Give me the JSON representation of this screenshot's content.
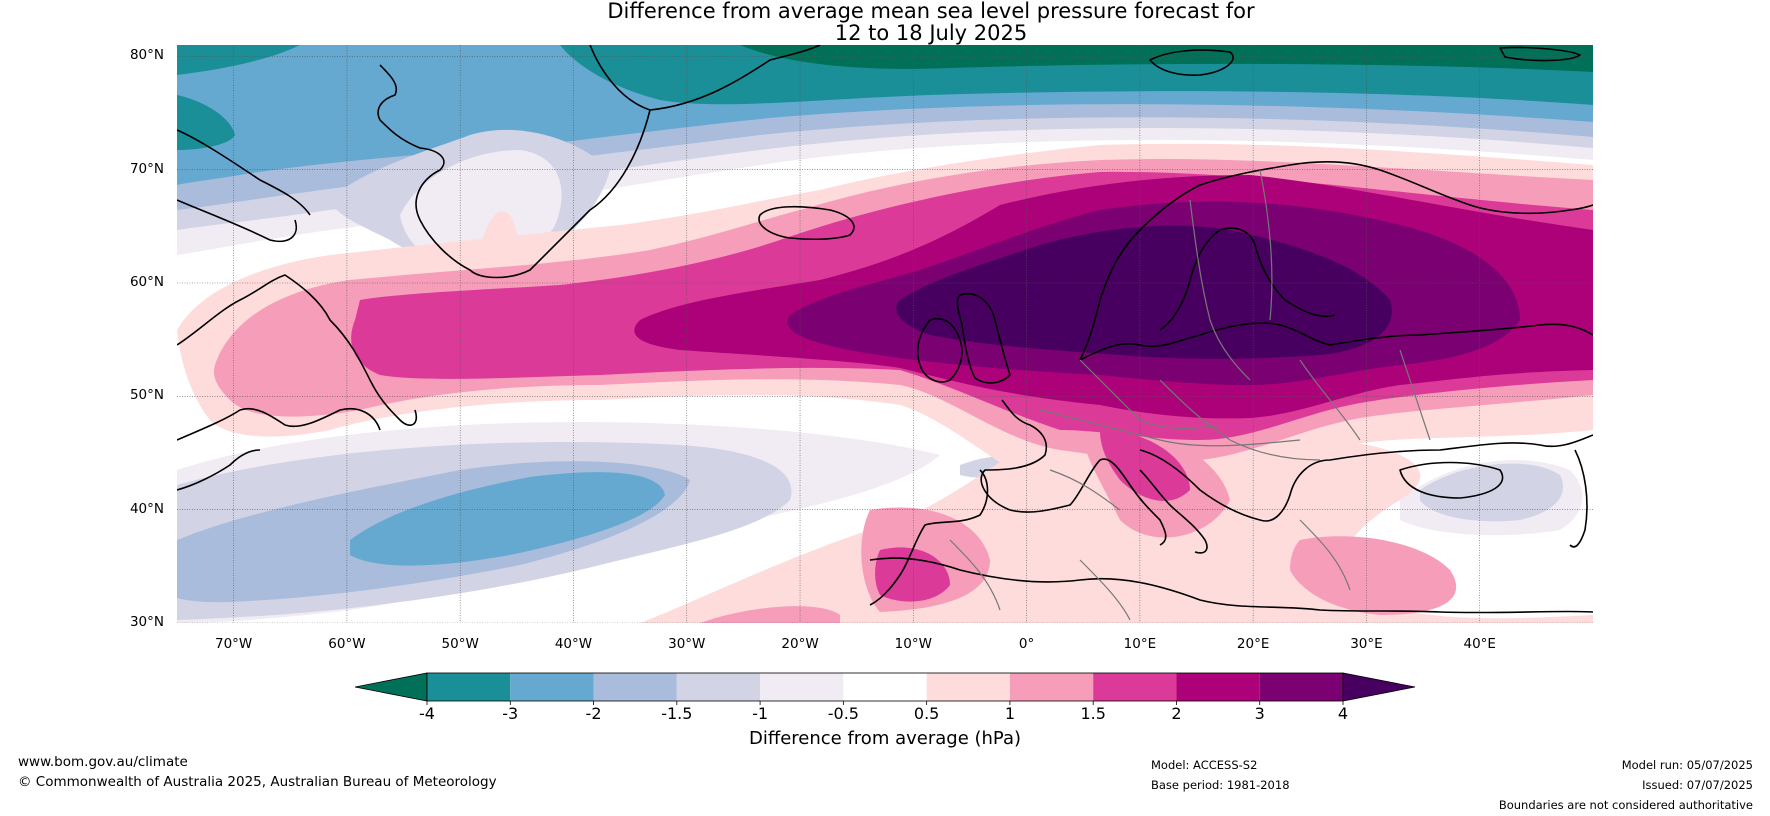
{
  "title": {
    "line1": "Difference from average mean sea level pressure forecast for",
    "line2": "12 to 18 July 2025"
  },
  "map": {
    "region": "North Atlantic and Europe",
    "lon_range": [
      -75,
      50
    ],
    "lat_range": [
      30,
      81
    ],
    "lat_labels": [
      {
        "lat": 80,
        "text": "80°N"
      },
      {
        "lat": 70,
        "text": "70°N"
      },
      {
        "lat": 60,
        "text": "60°N"
      },
      {
        "lat": 50,
        "text": "50°N"
      },
      {
        "lat": 40,
        "text": "40°N"
      },
      {
        "lat": 30,
        "text": "30°N"
      }
    ],
    "lon_labels": [
      {
        "lon": -70,
        "text": "70°W"
      },
      {
        "lon": -60,
        "text": "60°W"
      },
      {
        "lon": -50,
        "text": "50°W"
      },
      {
        "lon": -40,
        "text": "40°W"
      },
      {
        "lon": -30,
        "text": "30°W"
      },
      {
        "lon": -20,
        "text": "20°W"
      },
      {
        "lon": -10,
        "text": "10°W"
      },
      {
        "lon": 0,
        "text": "0°"
      },
      {
        "lon": 10,
        "text": "10°E"
      },
      {
        "lon": 20,
        "text": "20°E"
      },
      {
        "lon": 30,
        "text": "30°E"
      },
      {
        "lon": 40,
        "text": "40°E"
      }
    ]
  },
  "colorbar": {
    "label": "Difference from average (hPa)",
    "ticks": [
      "-4",
      "-3",
      "-2",
      "-1.5",
      "-1",
      "-0.5",
      "0.5",
      "1",
      "1.5",
      "2",
      "3",
      "4"
    ],
    "colors": [
      "#007058",
      "#1a8f98",
      "#66a9d0",
      "#a9bcdc",
      "#d3d3e6",
      "#f1ecf3",
      "#ffffff",
      "#fedcdc",
      "#f69dba",
      "#dc3a99",
      "#ac0179",
      "#7b0172",
      "#480060"
    ]
  },
  "footer": {
    "website": "www.bom.gov.au/climate",
    "copyright": "© Commonwealth of Australia 2025, Australian Bureau of Meteorology",
    "model": "Model: ACCESS-S2",
    "base_period": "Base period: 1981-2018",
    "model_run": "Model run: 05/07/2025",
    "issued": "Issued: 07/07/2025",
    "disclaimer": "Boundaries are not considered authoritative"
  }
}
